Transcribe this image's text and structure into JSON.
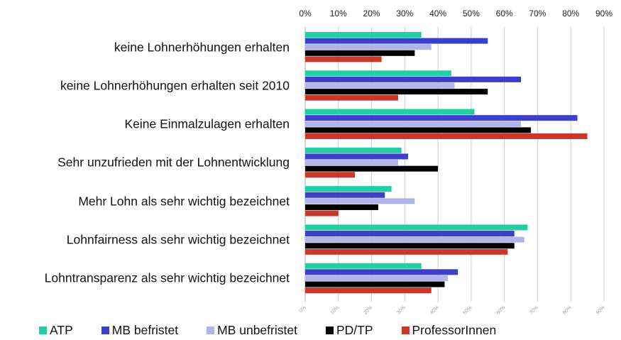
{
  "chart_data": {
    "type": "hbar",
    "categories": [
      "keine Lohnerhöhungen erhalten",
      "keine Lohnerhöhungen erhalten seit 2010",
      "Keine Einmalzulagen erhalten",
      "Sehr unzufrieden mit der Lohnentwicklung",
      "Mehr Lohn als sehr wichtig bezeichnet",
      "Lohnfairness als sehr wichtig bezeichnet",
      "Lohntransparenz als sehr wichtig bezeichnet"
    ],
    "series": [
      {
        "name": "ATP",
        "color": "#22cfa4",
        "values": [
          35,
          44,
          51,
          29,
          26,
          67,
          35
        ]
      },
      {
        "name": "MB befristet",
        "color": "#3b3fc9",
        "values": [
          55,
          65,
          82,
          31,
          24,
          63,
          46
        ]
      },
      {
        "name": "MB unbefristet",
        "color": "#b2b5ea",
        "values": [
          38,
          45,
          65,
          28,
          33,
          66,
          43
        ]
      },
      {
        "name": "PD/TP",
        "color": "#000000",
        "values": [
          33,
          55,
          68,
          40,
          22,
          63,
          42
        ]
      },
      {
        "name": "ProfessorInnen",
        "color": "#c9382b",
        "values": [
          23,
          28,
          85,
          15,
          10,
          61,
          38
        ]
      }
    ],
    "xlim": [
      0,
      90
    ],
    "xticks": [
      {
        "value": 0,
        "label": "0%"
      },
      {
        "value": 10,
        "label": "10%"
      },
      {
        "value": 20,
        "label": "20%"
      },
      {
        "value": 30,
        "label": "30%"
      },
      {
        "value": 40,
        "label": "40%"
      },
      {
        "value": 50,
        "label": "50%"
      },
      {
        "value": 60,
        "label": "60%"
      },
      {
        "value": 70,
        "label": "70%"
      },
      {
        "value": 80,
        "label": "80%"
      },
      {
        "value": 90,
        "label": "90%"
      }
    ],
    "grid": true,
    "legend": "bottom"
  }
}
